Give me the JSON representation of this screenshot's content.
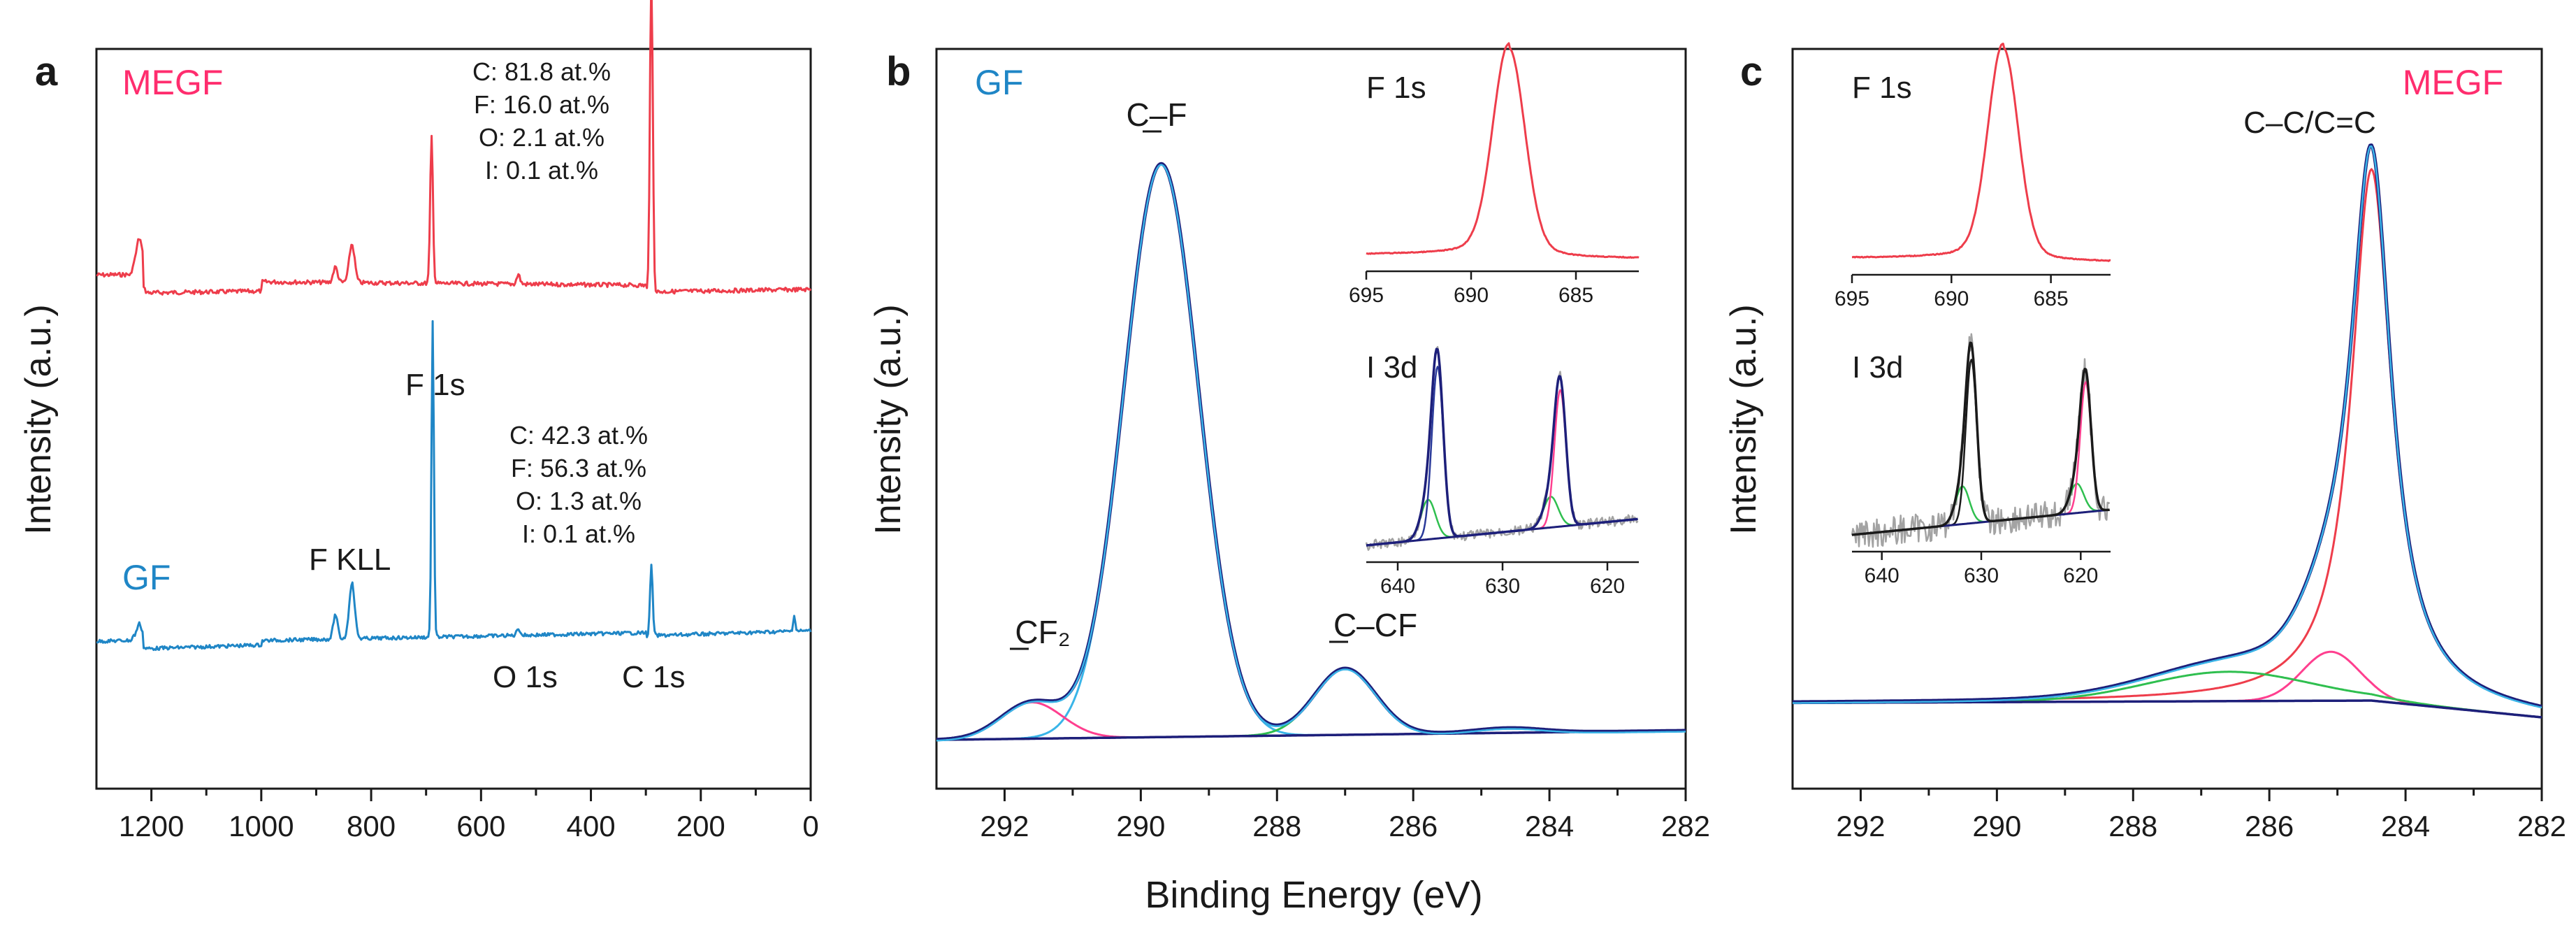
{
  "colors": {
    "megf": "#ee3d4b",
    "gf": "#1f86c6",
    "navy": "#1d1f7a",
    "cyan": "#3ab5e8",
    "pink": "#ff3f8f",
    "green": "#2fbf4f",
    "purple": "#2a3a9a",
    "gray": "#a3a3a3",
    "label_megf": "#ff2d6e",
    "label_gf": "#1f86c6",
    "dark": "#1a1a1a"
  },
  "figure": {
    "shared_xlabel": "Binding Energy (eV)"
  },
  "chart_data": [
    {
      "panel": "a",
      "type": "line",
      "ylabel": "Intensity (a.u.)",
      "xlim": [
        1300,
        0
      ],
      "xticks": [
        1200,
        1000,
        800,
        600,
        400,
        200,
        0
      ],
      "series": [
        {
          "name": "MEGF"
        },
        {
          "name": "GF"
        }
      ],
      "annotations": {
        "megf_label": "MEGF",
        "gf_label": "GF",
        "megf_comp": [
          "C: 81.8 at.%",
          "F: 16.0 at.%",
          "O: 2.1 at.%",
          "I: 0.1 at.%"
        ],
        "gf_comp": [
          "C: 42.3 at.%",
          "F: 56.3 at.%",
          "O: 1.3 at.%",
          "I: 0.1 at.%"
        ],
        "peaks": {
          "f1s": "F 1s",
          "fkll": "F KLL",
          "o1s": "O 1s",
          "c1s": "C 1s"
        }
      }
    },
    {
      "panel": "b",
      "type": "line",
      "ylabel": "Intensity (a.u.)",
      "xlim": [
        293,
        282
      ],
      "xticks": [
        292,
        290,
        288,
        286,
        284,
        282
      ],
      "sample": "GF",
      "components": [
        {
          "label": "C–F",
          "center": 289.7
        },
        {
          "label": "CF₂",
          "center": 291.6
        },
        {
          "label": "C–CF",
          "center": 287.0
        }
      ],
      "insets": [
        {
          "title": "F 1s",
          "xlim": [
            695,
            682
          ],
          "xticks": [
            695,
            690,
            685
          ],
          "peak": 688.2
        },
        {
          "title": "I 3d",
          "xlim": [
            643,
            617
          ],
          "xticks": [
            640,
            630,
            620
          ],
          "peaks": [
            624.5,
            636.2
          ]
        }
      ]
    },
    {
      "panel": "c",
      "type": "line",
      "ylabel": "Intensity (a.u.)",
      "xlim": [
        293,
        282
      ],
      "xticks": [
        292,
        290,
        288,
        286,
        284,
        282
      ],
      "sample": "MEGF",
      "components": [
        {
          "label": "C–C/C=C",
          "center": 284.5
        },
        {
          "label": "",
          "center": 285.1
        },
        {
          "label": "",
          "center": 286.6
        }
      ],
      "insets": [
        {
          "title": "F 1s",
          "xlim": [
            695,
            682
          ],
          "xticks": [
            695,
            690,
            685
          ],
          "peak": 687.4
        },
        {
          "title": "I 3d",
          "xlim": [
            643,
            617
          ],
          "xticks": [
            640,
            630,
            620
          ],
          "peaks": [
            619.5,
            631.0
          ]
        }
      ]
    }
  ]
}
